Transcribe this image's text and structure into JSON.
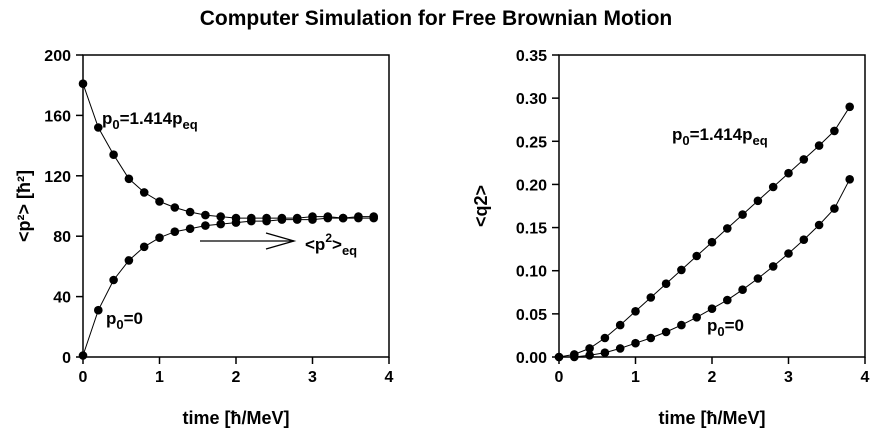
{
  "title": "Computer Simulation for Free Brownian Motion",
  "chart_data": [
    {
      "type": "line",
      "panel": "left",
      "xlabel": "time [ħ/MeV]",
      "ylabel": "<p²> [ħ²]",
      "xlim": [
        0,
        4
      ],
      "ylim": [
        0,
        200
      ],
      "xticks": [
        0,
        1,
        2,
        3,
        4
      ],
      "yticks": [
        0,
        40,
        80,
        120,
        160,
        200
      ],
      "grid": false,
      "series": [
        {
          "name": "p0=1.414peq",
          "x": [
            0,
            0.2,
            0.4,
            0.6,
            0.8,
            1.0,
            1.2,
            1.4,
            1.6,
            1.8,
            2.0,
            2.2,
            2.4,
            2.6,
            2.8,
            3.0,
            3.2,
            3.4,
            3.6,
            3.8
          ],
          "values": [
            181,
            152,
            134,
            118,
            109,
            103,
            99,
            96,
            94,
            93,
            92,
            92,
            92,
            92,
            92,
            93,
            93,
            92,
            93,
            93
          ]
        },
        {
          "name": "p0=0",
          "x": [
            0,
            0.2,
            0.4,
            0.6,
            0.8,
            1.0,
            1.2,
            1.4,
            1.6,
            1.8,
            2.0,
            2.2,
            2.4,
            2.6,
            2.8,
            3.0,
            3.2,
            3.4,
            3.6,
            3.8
          ],
          "values": [
            1,
            31,
            51,
            64,
            73,
            79,
            83,
            85,
            87,
            88,
            89,
            90,
            90,
            91,
            91,
            91,
            92,
            92,
            92,
            92
          ]
        }
      ],
      "annotations": [
        {
          "main": "p",
          "sub": "0",
          "rest": "=1.414p",
          "sub2": "eq"
        },
        {
          "main": "p",
          "sub": "0",
          "rest": "=0",
          "sub2": ""
        },
        {
          "main": "<p",
          "sup": "2",
          "rest": ">",
          "sub2": "eq"
        }
      ],
      "arrow": {
        "from": [
          1.55,
          77
        ],
        "to": [
          2.85,
          77
        ]
      }
    },
    {
      "type": "line",
      "panel": "right",
      "xlabel": "time [ħ/MeV]",
      "ylabel": "<q2>",
      "xlim": [
        0,
        4
      ],
      "ylim": [
        0,
        0.35
      ],
      "xticks": [
        0,
        1,
        2,
        3,
        4
      ],
      "yticks": [
        0.0,
        0.05,
        0.1,
        0.15,
        0.2,
        0.25,
        0.3,
        0.35
      ],
      "grid": false,
      "series": [
        {
          "name": "p0=1.414peq",
          "x": [
            0,
            0.2,
            0.4,
            0.6,
            0.8,
            1.0,
            1.2,
            1.4,
            1.6,
            1.8,
            2.0,
            2.2,
            2.4,
            2.6,
            2.8,
            3.0,
            3.2,
            3.4,
            3.6,
            3.8
          ],
          "values": [
            0.0,
            0.003,
            0.01,
            0.022,
            0.037,
            0.053,
            0.069,
            0.085,
            0.101,
            0.117,
            0.133,
            0.149,
            0.165,
            0.181,
            0.197,
            0.213,
            0.229,
            0.245,
            0.262,
            0.29
          ]
        },
        {
          "name": "p0=0",
          "x": [
            0,
            0.2,
            0.4,
            0.6,
            0.8,
            1.0,
            1.2,
            1.4,
            1.6,
            1.8,
            2.0,
            2.2,
            2.4,
            2.6,
            2.8,
            3.0,
            3.2,
            3.4,
            3.6,
            3.8
          ],
          "values": [
            0.0,
            0.0,
            0.002,
            0.005,
            0.01,
            0.016,
            0.022,
            0.029,
            0.037,
            0.046,
            0.056,
            0.066,
            0.078,
            0.091,
            0.105,
            0.12,
            0.136,
            0.153,
            0.172,
            0.206
          ]
        }
      ],
      "annotations": [
        {
          "main": "p",
          "sub": "0",
          "rest": "=1.414p",
          "sub2": "eq"
        },
        {
          "main": "p",
          "sub": "0",
          "rest": "=0",
          "sub2": ""
        }
      ]
    }
  ]
}
